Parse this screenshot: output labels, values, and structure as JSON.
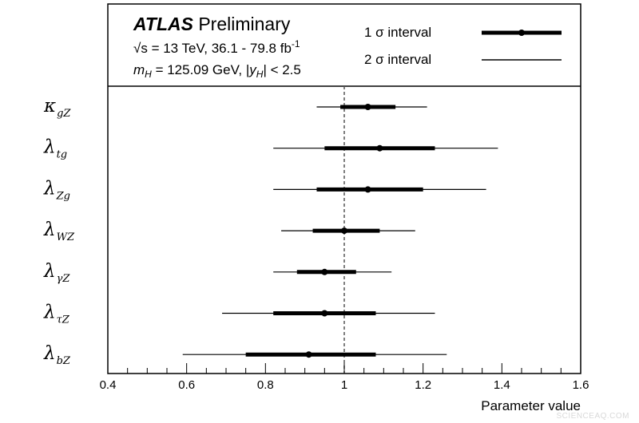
{
  "header": {
    "experiment": "ATLAS",
    "status": "Preliminary",
    "sqrt_s_symbol": "√s",
    "energy_text": " = 13 TeV, 36.1 - 79.8 fb",
    "lumi_exponent": "-1",
    "mass_symbol": "m",
    "mass_subscript": "H",
    "mass_text": " = 125.09 GeV, |",
    "rapidity_symbol": "y",
    "rapidity_subscript": "H",
    "rapidity_text": "| < 2.5"
  },
  "legend": {
    "one_sigma": "1 σ interval",
    "two_sigma": "2 σ interval"
  },
  "watermark": "SCIENCEAQ.COM",
  "chart_data": {
    "type": "scatter",
    "xlabel": "Parameter value",
    "xlim": [
      0.4,
      1.6
    ],
    "xticks": [
      0.4,
      0.6,
      0.8,
      1,
      1.2,
      1.4,
      1.6
    ],
    "xtick_labels": [
      "0.4",
      "0.6",
      "0.8",
      "1",
      "1.2",
      "1.4",
      "1.6"
    ],
    "reference_line": 1,
    "parameters": [
      {
        "symbol": "κ",
        "subscript": "gZ",
        "value": 1.06,
        "one_sigma": [
          0.99,
          1.13
        ],
        "two_sigma": [
          0.93,
          1.21
        ]
      },
      {
        "symbol": "λ",
        "subscript": "tg",
        "value": 1.09,
        "one_sigma": [
          0.95,
          1.23
        ],
        "two_sigma": [
          0.82,
          1.39
        ]
      },
      {
        "symbol": "λ",
        "subscript": "Zg",
        "value": 1.06,
        "one_sigma": [
          0.93,
          1.2
        ],
        "two_sigma": [
          0.82,
          1.36
        ]
      },
      {
        "symbol": "λ",
        "subscript": "WZ",
        "value": 1.0,
        "one_sigma": [
          0.92,
          1.09
        ],
        "two_sigma": [
          0.84,
          1.18
        ]
      },
      {
        "symbol": "λ",
        "subscript": "γZ",
        "value": 0.95,
        "one_sigma": [
          0.88,
          1.03
        ],
        "two_sigma": [
          0.82,
          1.12
        ]
      },
      {
        "symbol": "λ",
        "subscript": "τZ",
        "value": 0.95,
        "one_sigma": [
          0.82,
          1.08
        ],
        "two_sigma": [
          0.69,
          1.23
        ]
      },
      {
        "symbol": "λ",
        "subscript": "bZ",
        "value": 0.91,
        "one_sigma": [
          0.75,
          1.08
        ],
        "two_sigma": [
          0.59,
          1.26
        ]
      }
    ]
  }
}
